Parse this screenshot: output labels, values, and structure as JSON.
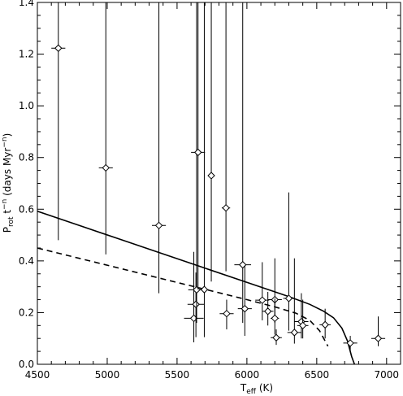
{
  "chart_data": {
    "type": "scatter",
    "title": "",
    "xlabel": "T",
    "xlabel_sub": "eff",
    "xlabel_unit": "(K)",
    "ylabel_parts": [
      "P",
      "rot",
      " t",
      "−n",
      " (days Myr",
      "−n",
      ")"
    ],
    "xlim": [
      4500,
      7100
    ],
    "ylim": [
      0.0,
      1.4
    ],
    "x_ticks": [
      4500,
      5000,
      5500,
      6000,
      6500,
      7000
    ],
    "y_ticks": [
      0.0,
      0.2,
      0.4,
      0.6,
      0.8,
      1.0,
      1.2,
      1.4
    ],
    "y_tick_labels": [
      "0.0",
      "0.2",
      "0.4",
      "0.6",
      "0.8",
      "1.0",
      "1.2",
      "1.4"
    ],
    "grid": false,
    "points": [
      {
        "x": 4650,
        "y": 1.223,
        "xerr": 50,
        "ylo": 0.48,
        "yhi": 1.4
      },
      {
        "x": 4990,
        "y": 0.76,
        "xerr": 50,
        "ylo": 0.425,
        "yhi": 1.4
      },
      {
        "x": 5370,
        "y": 0.537,
        "xerr": 50,
        "ylo": 0.275,
        "yhi": 1.4
      },
      {
        "x": 5620,
        "y": 0.178,
        "xerr": 70,
        "ylo": 0.085,
        "yhi": 0.435
      },
      {
        "x": 5635,
        "y": 0.232,
        "xerr": 60,
        "ylo": 0.105,
        "yhi": 0.355
      },
      {
        "x": 5640,
        "y": 0.288,
        "xerr": 60,
        "ylo": 0.16,
        "yhi": 1.4
      },
      {
        "x": 5650,
        "y": 0.82,
        "xerr": 50,
        "ylo": 0.29,
        "yhi": 1.4
      },
      {
        "x": 5695,
        "y": 0.289,
        "xerr": 30,
        "ylo": 0.105,
        "yhi": 1.4
      },
      {
        "x": 5745,
        "y": 0.73,
        "xerr": 0,
        "ylo": 0.32,
        "yhi": 1.4
      },
      {
        "x": 5850,
        "y": 0.605,
        "xerr": 30,
        "ylo": 0.36,
        "yhi": 1.4
      },
      {
        "x": 5855,
        "y": 0.196,
        "xerr": 50,
        "ylo": 0.135,
        "yhi": 0.25
      },
      {
        "x": 5970,
        "y": 0.385,
        "xerr": 60,
        "ylo": 0.16,
        "yhi": 1.4
      },
      {
        "x": 5985,
        "y": 0.215,
        "xerr": 50,
        "ylo": 0.11,
        "yhi": 0.38
      },
      {
        "x": 6110,
        "y": 0.248,
        "xerr": 50,
        "ylo": 0.17,
        "yhi": 0.395
      },
      {
        "x": 6150,
        "y": 0.205,
        "xerr": 40,
        "ylo": 0.15,
        "yhi": 0.28
      },
      {
        "x": 6200,
        "y": 0.25,
        "xerr": 50,
        "ylo": 0.16,
        "yhi": 0.41
      },
      {
        "x": 6200,
        "y": 0.178,
        "xerr": 30,
        "ylo": 0.115,
        "yhi": 0.255
      },
      {
        "x": 6210,
        "y": 0.103,
        "xerr": 40,
        "ylo": 0.075,
        "yhi": 0.135
      },
      {
        "x": 6300,
        "y": 0.255,
        "xerr": 40,
        "ylo": 0.13,
        "yhi": 0.665
      },
      {
        "x": 6340,
        "y": 0.123,
        "xerr": 50,
        "ylo": 0.08,
        "yhi": 0.41
      },
      {
        "x": 6390,
        "y": 0.165,
        "xerr": 50,
        "ylo": 0.1,
        "yhi": 0.275
      },
      {
        "x": 6400,
        "y": 0.15,
        "xerr": 40,
        "ylo": 0.1,
        "yhi": 0.25
      },
      {
        "x": 6560,
        "y": 0.153,
        "xerr": 40,
        "ylo": 0.1,
        "yhi": 0.215
      },
      {
        "x": 6740,
        "y": 0.082,
        "xerr": 50,
        "ylo": 0.05,
        "yhi": 0.11
      },
      {
        "x": 6940,
        "y": 0.1,
        "xerr": 50,
        "ylo": 0.07,
        "yhi": 0.185
      }
    ],
    "series": [
      {
        "style": "solid",
        "x": [
          4500,
          4800,
          5100,
          5400,
          5700,
          6000,
          6300,
          6450,
          6550,
          6620,
          6680,
          6720,
          6750,
          6770
        ],
        "y": [
          0.592,
          0.537,
          0.482,
          0.427,
          0.372,
          0.317,
          0.262,
          0.232,
          0.205,
          0.18,
          0.14,
          0.09,
          0.03,
          0.0
        ]
      },
      {
        "style": "dashed",
        "x": [
          4500,
          4800,
          5100,
          5400,
          5700,
          6000,
          6200,
          6350,
          6450,
          6520,
          6580
        ],
        "y": [
          0.45,
          0.41,
          0.37,
          0.33,
          0.29,
          0.25,
          0.222,
          0.198,
          0.17,
          0.13,
          0.07
        ]
      }
    ]
  }
}
